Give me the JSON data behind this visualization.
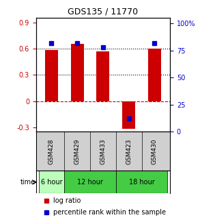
{
  "title": "GDS135 / 11770",
  "samples": [
    "GSM428",
    "GSM429",
    "GSM433",
    "GSM423",
    "GSM430"
  ],
  "log_ratios": [
    0.58,
    0.65,
    0.57,
    -0.32,
    0.6
  ],
  "percentile_ranks": [
    0.82,
    0.82,
    0.78,
    0.12,
    0.82
  ],
  "time_groups": [
    {
      "label": "6 hour",
      "span": [
        0,
        1
      ],
      "color": "#ccffcc"
    },
    {
      "label": "12 hour",
      "span": [
        1,
        3
      ],
      "color": "#66dd66"
    },
    {
      "label": "18 hour",
      "span": [
        3,
        5
      ],
      "color": "#66dd66"
    }
  ],
  "time_colors": [
    "#ccffcc",
    "#55cc55",
    "#55cc55"
  ],
  "bar_color": "#cc0000",
  "point_color": "#0000cc",
  "ylim_left": [
    -0.35,
    0.95
  ],
  "ylim_right": [
    0,
    105
  ],
  "yticks_left": [
    -0.3,
    0.0,
    0.3,
    0.6,
    0.9
  ],
  "yticks_right": [
    0,
    25,
    50,
    75,
    100
  ],
  "ytick_labels_left": [
    "-0.3",
    "0",
    "0.3",
    "0.6",
    "0.9"
  ],
  "ytick_labels_right": [
    "0",
    "25",
    "50",
    "75",
    "100%"
  ],
  "hlines": [
    0.3,
    0.6
  ],
  "zero_line": 0.0,
  "bg_color": "#ffffff",
  "plot_bg": "#ffffff",
  "grid_color": "#000000",
  "bar_width": 0.5
}
